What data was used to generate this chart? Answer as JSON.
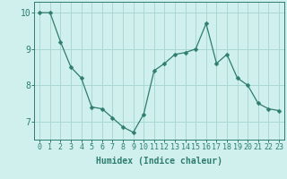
{
  "x": [
    0,
    1,
    2,
    3,
    4,
    5,
    6,
    7,
    8,
    9,
    10,
    11,
    12,
    13,
    14,
    15,
    16,
    17,
    18,
    19,
    20,
    21,
    22,
    23
  ],
  "y": [
    10.0,
    10.0,
    9.2,
    8.5,
    8.2,
    7.4,
    7.35,
    7.1,
    6.85,
    6.7,
    7.2,
    8.4,
    8.6,
    8.85,
    8.9,
    9.0,
    9.7,
    8.6,
    8.85,
    8.2,
    8.0,
    7.5,
    7.35,
    7.3
  ],
  "line_color": "#2e7d6e",
  "bg_color": "#cff0ec",
  "grid_color": "#aad8d2",
  "xlabel": "Humidex (Indice chaleur)",
  "ylim": [
    6.5,
    10.3
  ],
  "xlim": [
    -0.5,
    23.5
  ],
  "yticks": [
    7,
    8,
    9,
    10
  ],
  "xticks": [
    0,
    1,
    2,
    3,
    4,
    5,
    6,
    7,
    8,
    9,
    10,
    11,
    12,
    13,
    14,
    15,
    16,
    17,
    18,
    19,
    20,
    21,
    22,
    23
  ],
  "xtick_labels": [
    "0",
    "1",
    "2",
    "3",
    "4",
    "5",
    "6",
    "7",
    "8",
    "9",
    "10",
    "11",
    "12",
    "13",
    "14",
    "15",
    "16",
    "17",
    "18",
    "19",
    "20",
    "21",
    "22",
    "23"
  ],
  "tick_color": "#2e7d6e",
  "label_fontsize": 7.0,
  "tick_fontsize": 6.0,
  "marker_size": 2.5,
  "linewidth": 0.9
}
